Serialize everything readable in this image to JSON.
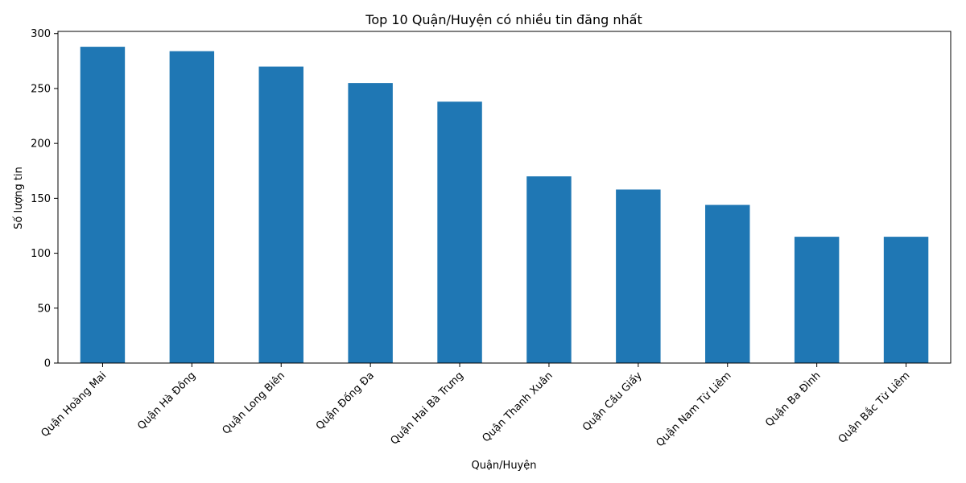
{
  "chart_data": {
    "type": "bar",
    "title": "Top 10 Quận/Huyện có nhiều tin đăng nhất",
    "xlabel": "Quận/Huyện",
    "ylabel": "Số lượng tin",
    "categories": [
      "Quận Hoàng Mai",
      "Quận Hà Đông",
      "Quận Long Biên",
      "Quận Đống Đa",
      "Quận Hai Bà Trưng",
      "Quận Thanh Xuân",
      "Quận Cầu Giấy",
      "Quận Nam Từ Liêm",
      "Quận Ba Đình",
      "Quận Bắc Từ Liêm"
    ],
    "values": [
      288,
      284,
      270,
      255,
      238,
      170,
      158,
      144,
      115,
      115
    ],
    "ylim": [
      0,
      302
    ],
    "yticks": [
      0,
      50,
      100,
      150,
      200,
      250,
      300
    ],
    "bar_color": "#1f77b4",
    "grid": false,
    "legend": "none"
  }
}
